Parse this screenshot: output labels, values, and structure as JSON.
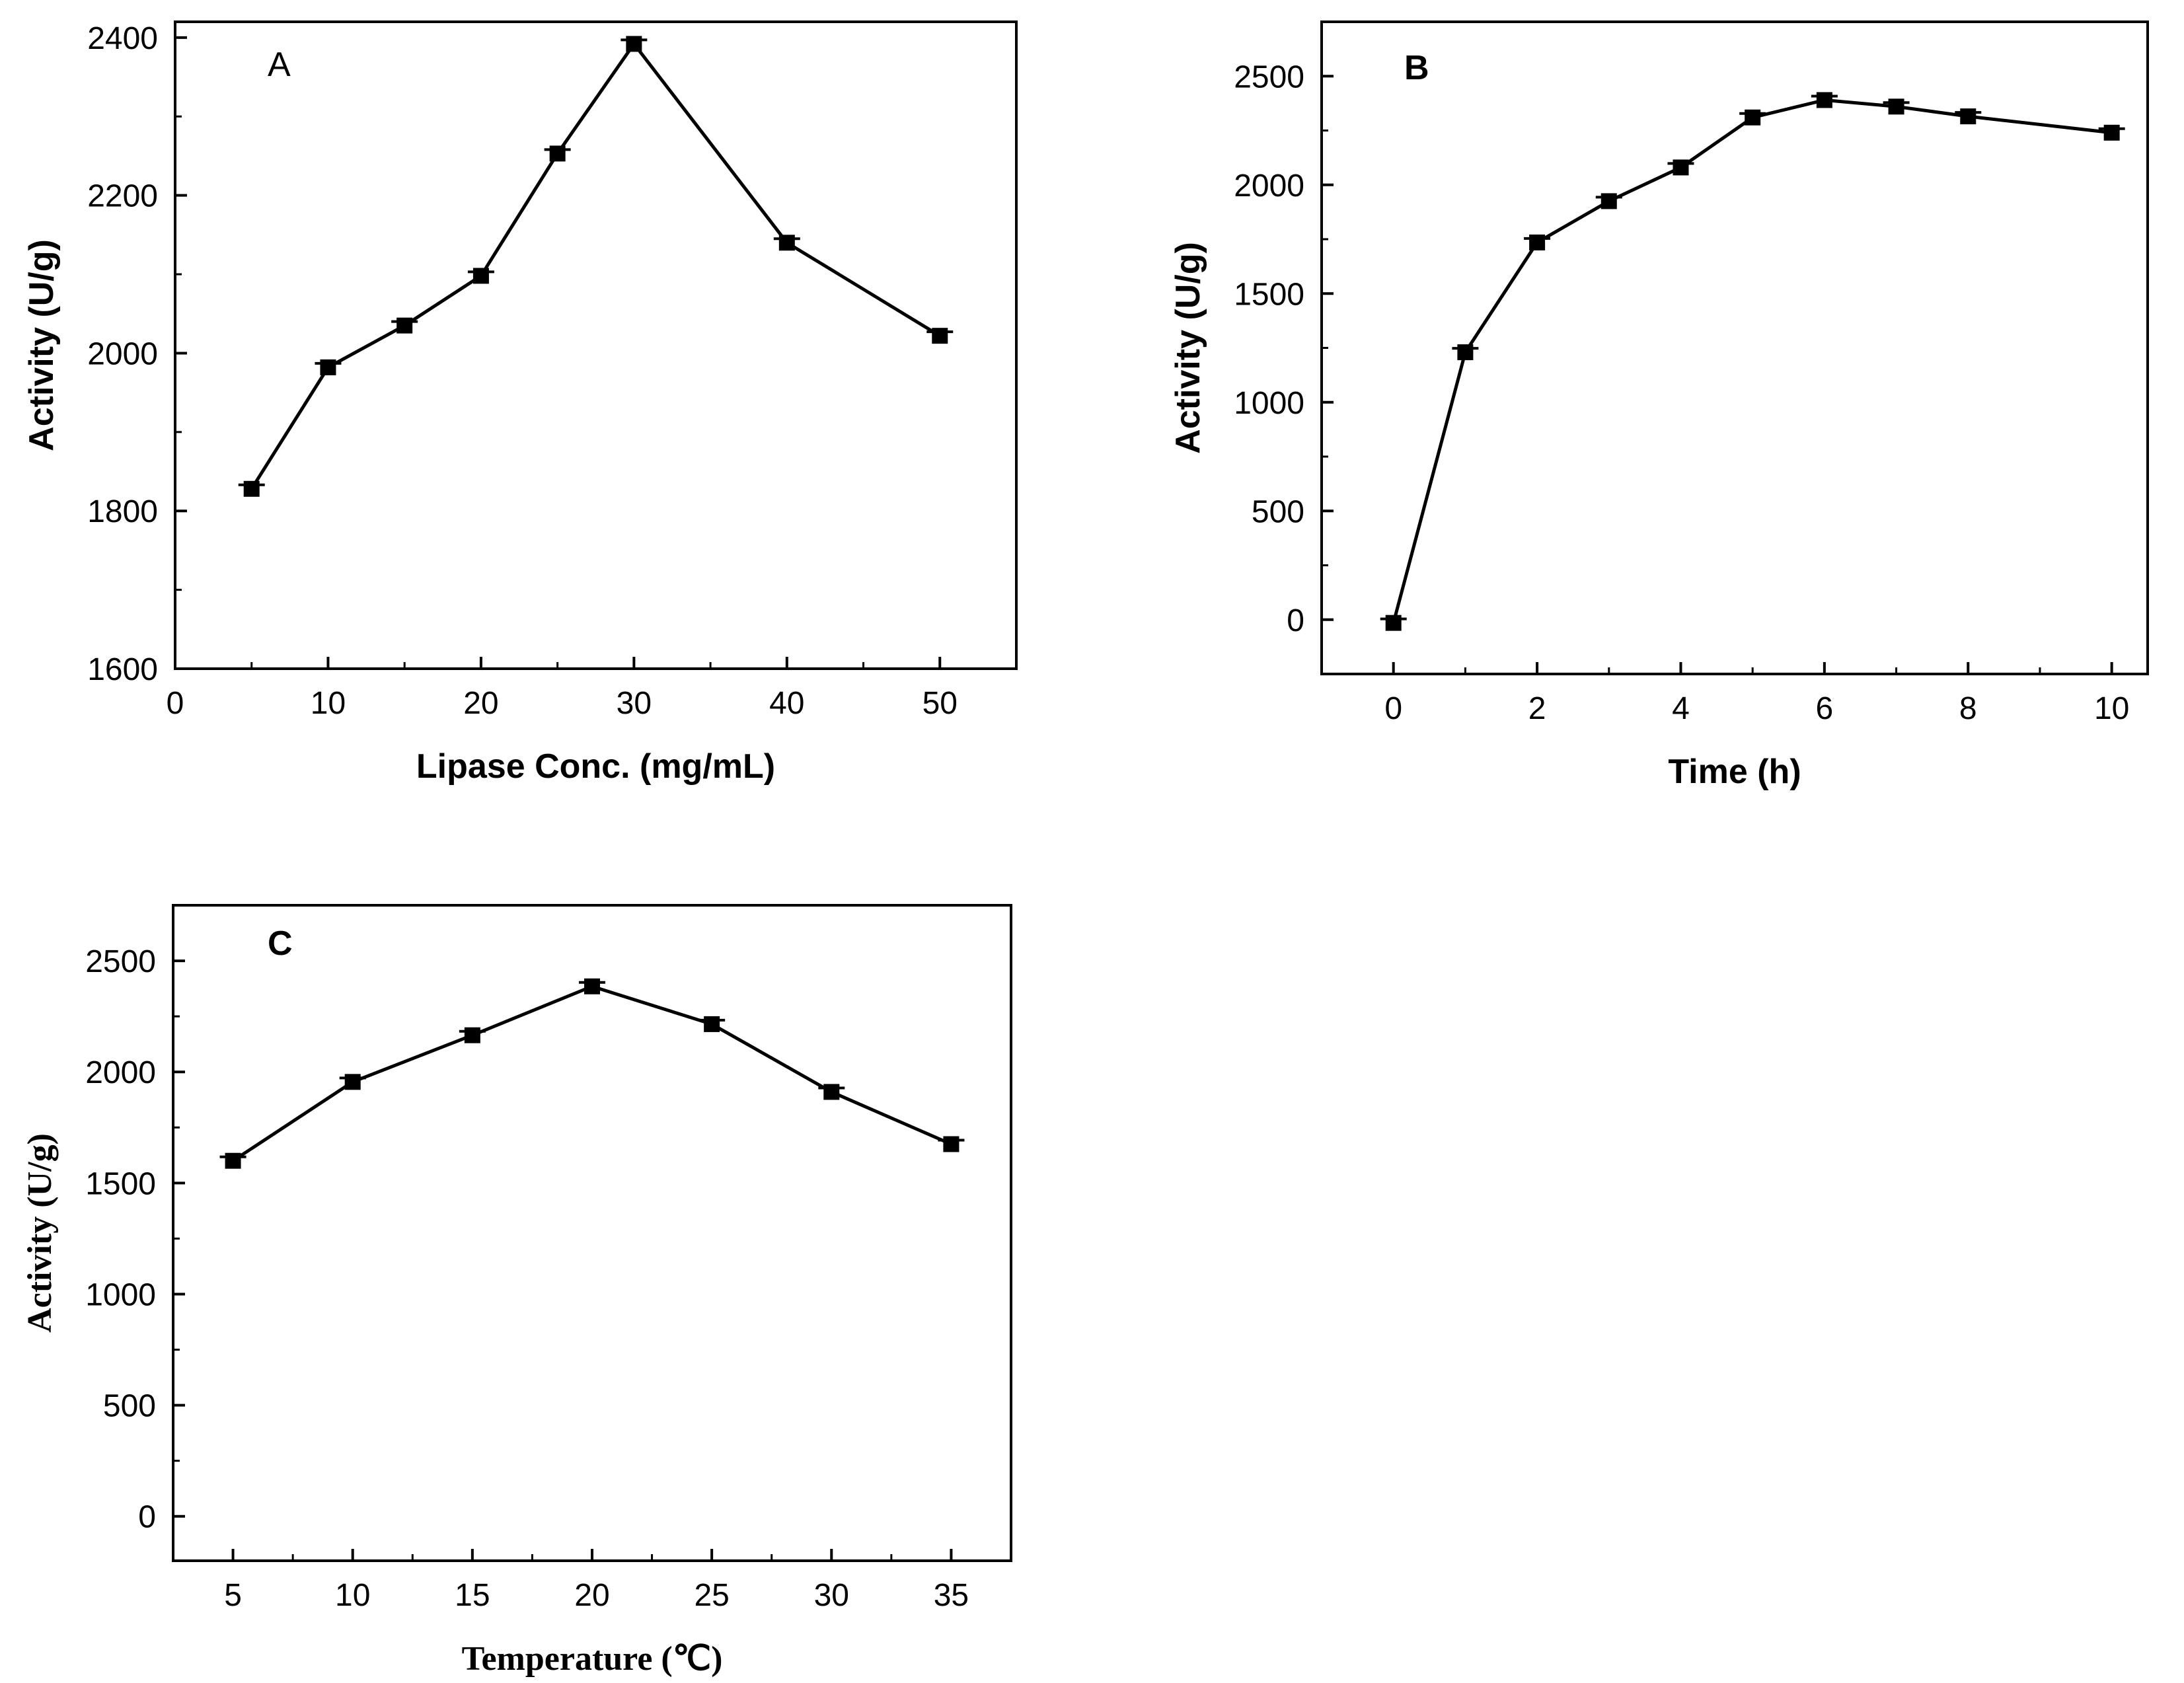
{
  "chart_data": [
    {
      "type": "line",
      "panel_label": "A",
      "panel_label_bold": false,
      "x": [
        5,
        10,
        15,
        20,
        25,
        30,
        40,
        50
      ],
      "series": [
        {
          "name": "Activity",
          "values": [
            1828,
            1982,
            2035,
            2098,
            2253,
            2392,
            2140,
            2022
          ]
        }
      ],
      "xlabel": "Lipase Conc. (mg/mL)",
      "ylabel": "Activity (U/g)",
      "xlim": [
        0,
        55
      ],
      "ylim": [
        1600,
        2420
      ],
      "xticks": [
        "0",
        "10",
        "20",
        "30",
        "40",
        "50"
      ],
      "yticks": [
        "1600",
        "1800",
        "2000",
        "2200",
        "2400"
      ],
      "marker": "square",
      "grid": false
    },
    {
      "type": "line",
      "panel_label": "B",
      "panel_label_bold": true,
      "x": [
        0,
        1,
        2,
        3,
        4,
        5,
        6,
        7,
        8,
        10
      ],
      "series": [
        {
          "name": "Activity",
          "values": [
            -15,
            1230,
            1735,
            1925,
            2080,
            2310,
            2390,
            2360,
            2315,
            2240
          ]
        }
      ],
      "xlabel": "Time (h)",
      "ylabel": "Activity (U/g)",
      "xlim": [
        -1,
        10.5
      ],
      "ylim": [
        -250,
        2750
      ],
      "xticks": [
        "0",
        "2",
        "4",
        "6",
        "8",
        "10"
      ],
      "yticks": [
        "0",
        "500",
        "1000",
        "1500",
        "2000",
        "2500"
      ],
      "marker": "square",
      "grid": false
    },
    {
      "type": "line",
      "panel_label": "C",
      "panel_label_bold": true,
      "x": [
        5,
        10,
        15,
        20,
        25,
        30,
        35
      ],
      "series": [
        {
          "name": "Activity",
          "values": [
            1600,
            1955,
            2165,
            2385,
            2215,
            1910,
            1675
          ]
        }
      ],
      "xlabel": "Temperature (℃)",
      "ylabel": "Activity (U/g)",
      "xlim": [
        2.5,
        37.5
      ],
      "ylim": [
        -200,
        2750
      ],
      "xticks": [
        "5",
        "10",
        "15",
        "20",
        "25",
        "30",
        "35"
      ],
      "yticks": [
        "0",
        "500",
        "1000",
        "1500",
        "2000",
        "2500"
      ],
      "marker": "square",
      "grid": false
    }
  ],
  "colors": {
    "line": "#000000",
    "marker": "#000000",
    "frame": "#000000",
    "background": "#ffffff"
  }
}
